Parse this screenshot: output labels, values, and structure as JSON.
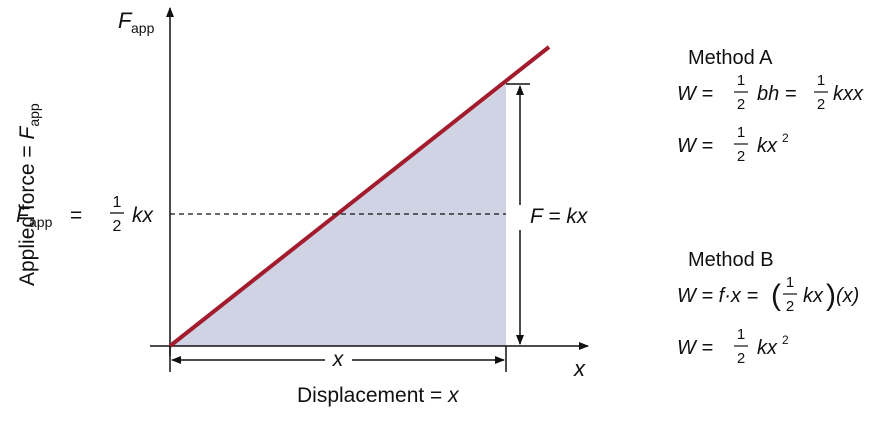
{
  "graph": {
    "y_axis_symbol": "F",
    "y_axis_subscript": "app",
    "x_axis_symbol": "x",
    "y_axis_title": "Applied force = ",
    "y_axis_title_symbol": "F",
    "y_axis_title_subscript": "app",
    "x_axis_title": "Displacement = ",
    "x_axis_title_symbol": "x",
    "midline_left_symbol": "F",
    "midline_left_subscript": "app",
    "midline_left_equals": "=",
    "midline_fraction_num": "1",
    "midline_fraction_den": "2",
    "midline_left_rhs": "kx",
    "height_label": "F = kx",
    "width_label": "x",
    "line_color": "#a31c2e",
    "fill_color": "#cfd3e3"
  },
  "method_a": {
    "title": "Method A",
    "eq1": {
      "lhs": "W =",
      "frac1_num": "1",
      "frac1_den": "2",
      "mid": "bh =",
      "frac2_num": "1",
      "frac2_den": "2",
      "end": "kxx"
    },
    "eq2": {
      "lhs": "W =",
      "frac_num": "1",
      "frac_den": "2",
      "end": "kx",
      "sup": "2"
    }
  },
  "method_b": {
    "title": "Method B",
    "eq1": {
      "lhs": "W = f·x =",
      "frac_num": "1",
      "frac_den": "2",
      "inner_end": "kx",
      "tail": "(x)"
    },
    "eq2": {
      "lhs": "W =",
      "frac_num": "1",
      "frac_den": "2",
      "end": "kx",
      "sup": "2"
    }
  }
}
